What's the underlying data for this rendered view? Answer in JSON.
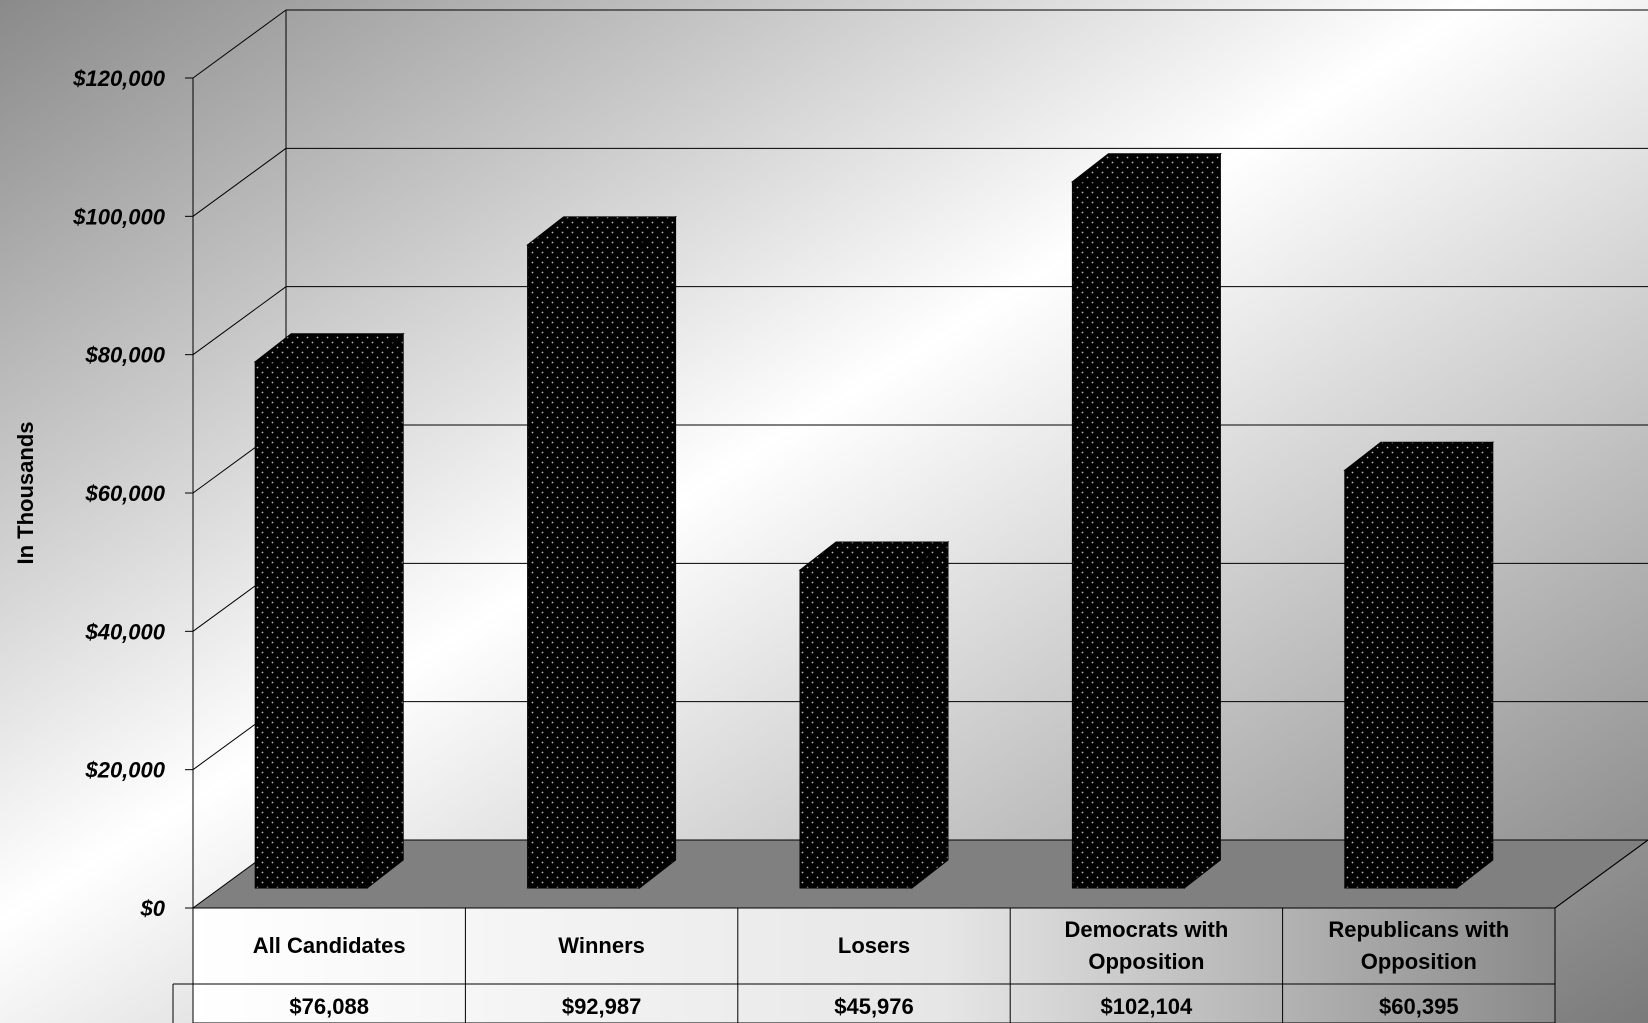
{
  "chart_data": {
    "type": "bar",
    "ylabel": "In Thousands",
    "ylim": [
      0,
      120000
    ],
    "yticks": [
      "$0",
      "$20,000",
      "$40,000",
      "$60,000",
      "$80,000",
      "$100,000",
      "$120,000"
    ],
    "categories": [
      [
        "All Candidates"
      ],
      [
        "Winners"
      ],
      [
        "Losers"
      ],
      [
        "Democrats with",
        "Opposition"
      ],
      [
        "Republicans with",
        "Opposition"
      ]
    ],
    "values": [
      76088,
      92987,
      45976,
      102104,
      60395
    ],
    "value_labels": [
      "$76,088",
      "$92,987",
      "$45,976",
      "$102,104",
      "$60,395"
    ],
    "grid": true,
    "legend": "none",
    "bar_color": "#000000",
    "bar_pattern": "dotted",
    "floor_color": "#808080"
  }
}
